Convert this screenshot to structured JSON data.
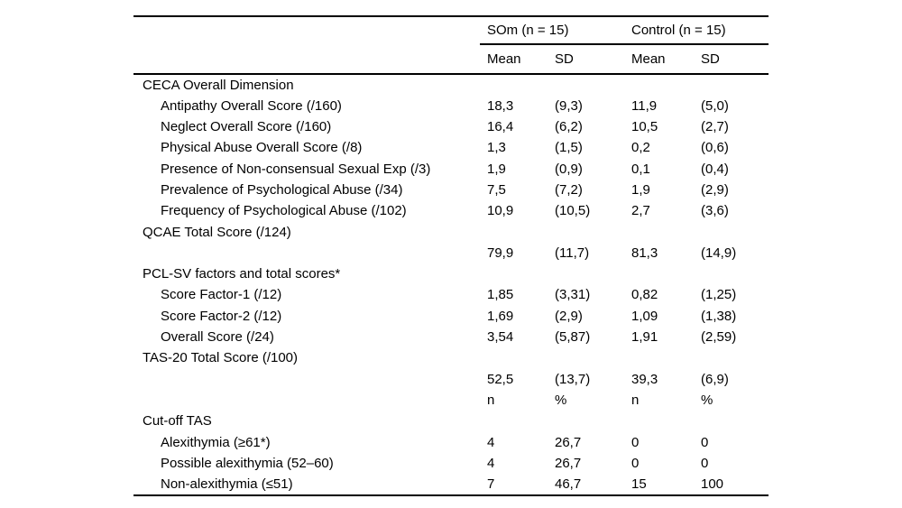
{
  "page": {
    "background_color": "#ffffff",
    "text_color": "#000000",
    "rule_color": "#000000"
  },
  "table": {
    "group_headers": [
      "SOm (n = 15)",
      "Control (n = 15)"
    ],
    "column_headers": [
      "Mean",
      "SD",
      "Mean",
      "SD"
    ],
    "rows": [
      {
        "label": "CECA Overall Dimension",
        "indent": false,
        "values": [
          "",
          "",
          "",
          ""
        ]
      },
      {
        "label": "Antipathy Overall Score (/160)",
        "indent": true,
        "values": [
          "18,3",
          "(9,3)",
          "11,9",
          "(5,0)"
        ]
      },
      {
        "label": "Neglect Overall Score (/160)",
        "indent": true,
        "values": [
          "16,4",
          "(6,2)",
          "10,5",
          "(2,7)"
        ]
      },
      {
        "label": "Physical Abuse Overall Score (/8)",
        "indent": true,
        "values": [
          "1,3",
          "(1,5)",
          "0,2",
          "(0,6)"
        ]
      },
      {
        "label": "Presence of Non-consensual Sexual Exp (/3)",
        "indent": true,
        "values": [
          "1,9",
          "(0,9)",
          "0,1",
          "(0,4)"
        ]
      },
      {
        "label": "Prevalence of Psychological Abuse (/34)",
        "indent": true,
        "values": [
          "7,5",
          "(7,2)",
          "1,9",
          "(2,9)"
        ]
      },
      {
        "label": "Frequency of Psychological Abuse (/102)",
        "indent": true,
        "values": [
          "10,9",
          "(10,5)",
          "2,7",
          "(3,6)"
        ]
      },
      {
        "label": "QCAE Total Score (/124)",
        "indent": false,
        "values": [
          "",
          "",
          "",
          ""
        ]
      },
      {
        "label": "",
        "indent": false,
        "values": [
          "79,9",
          "(11,7)",
          "81,3",
          "(14,9)"
        ]
      },
      {
        "label": "PCL-SV factors and total scores*",
        "indent": false,
        "values": [
          "",
          "",
          "",
          ""
        ]
      },
      {
        "label": "Score Factor-1 (/12)",
        "indent": true,
        "values": [
          "1,85",
          "(3,31)",
          "0,82",
          "(1,25)"
        ]
      },
      {
        "label": "Score Factor-2 (/12)",
        "indent": true,
        "values": [
          "1,69",
          "(2,9)",
          "1,09",
          "(1,38)"
        ]
      },
      {
        "label": "Overall Score (/24)",
        "indent": true,
        "values": [
          "3,54",
          "(5,87)",
          "1,91",
          "(2,59)"
        ]
      },
      {
        "label": "TAS-20 Total Score (/100)",
        "indent": false,
        "values": [
          "",
          "",
          "",
          ""
        ]
      },
      {
        "label": "",
        "indent": false,
        "values": [
          "52,5",
          "(13,7)",
          "39,3",
          "(6,9)"
        ]
      },
      {
        "label": "",
        "indent": false,
        "values": [
          "n",
          "%",
          "n",
          "%"
        ]
      },
      {
        "label": "Cut-off TAS",
        "indent": false,
        "values": [
          "",
          "",
          "",
          ""
        ]
      },
      {
        "label": "Alexithymia (≥61*)",
        "indent": true,
        "values": [
          "4",
          "26,7",
          "0",
          "0"
        ]
      },
      {
        "label": "Possible alexithymia (52–60)",
        "indent": true,
        "values": [
          "4",
          "26,7",
          "0",
          "0"
        ]
      },
      {
        "label": "Non-alexithymia (≤51)",
        "indent": true,
        "values": [
          "7",
          "46,7",
          "15",
          "100"
        ]
      }
    ]
  }
}
